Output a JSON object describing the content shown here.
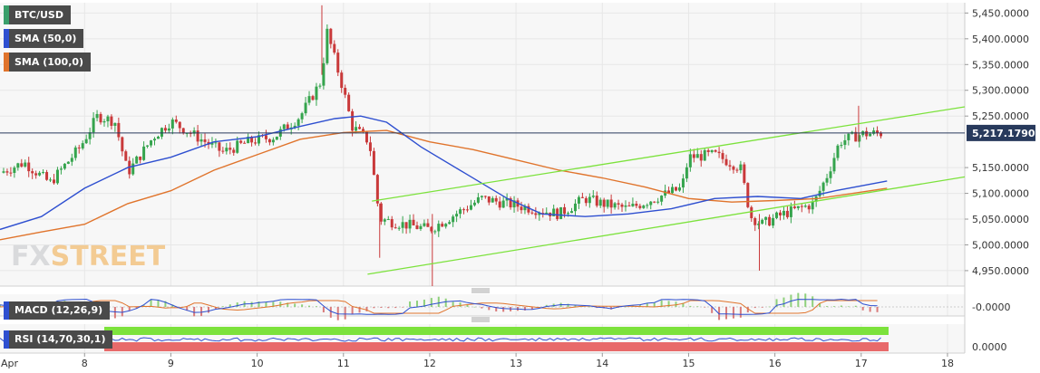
{
  "chart_data": {
    "type": "candlestick",
    "instrument": "BTC/USD",
    "indicators": {
      "sma50": {
        "label": "SMA (50,0)",
        "color": "#2e4fd0"
      },
      "sma100": {
        "label": "SMA (100,0)",
        "color": "#e0742c"
      },
      "macd": {
        "label": "MACD (12,26,9)",
        "zero_label": "-0.0000"
      },
      "rsi": {
        "label": "RSI (14,70,30,1)",
        "zero_label": "0.0000"
      }
    },
    "current_price": {
      "label": "5,217.1790",
      "value": 5217.179
    },
    "y_ticks": [
      {
        "label": "5,450.0000",
        "value": 5450
      },
      {
        "label": "5,400.0000",
        "value": 5400
      },
      {
        "label": "5,350.0000",
        "value": 5350
      },
      {
        "label": "5,300.0000",
        "value": 5300
      },
      {
        "label": "5,250.0000",
        "value": 5250
      },
      {
        "label": "5,150.0000",
        "value": 5150
      },
      {
        "label": "5,100.0000",
        "value": 5100
      },
      {
        "label": "5,050.0000",
        "value": 5050
      },
      {
        "label": "5,000.0000",
        "value": 5000
      },
      {
        "label": "4,950.0000",
        "value": 4950
      }
    ],
    "ylim": [
      4920,
      5470
    ],
    "x_ticks": [
      {
        "label": "Apr",
        "day": 7
      },
      {
        "label": "8",
        "day": 8
      },
      {
        "label": "9",
        "day": 9
      },
      {
        "label": "10",
        "day": 10
      },
      {
        "label": "11",
        "day": 11
      },
      {
        "label": "12",
        "day": 12
      },
      {
        "label": "13",
        "day": 13
      },
      {
        "label": "14",
        "day": 14
      },
      {
        "label": "15",
        "day": 15
      },
      {
        "label": "16",
        "day": 16
      },
      {
        "label": "17",
        "day": 17
      },
      {
        "label": "18",
        "day": 18
      }
    ],
    "xlim": [
      7.02,
      18.2
    ],
    "close_path": [
      [
        7.02,
        5140
      ],
      [
        7.3,
        5160
      ],
      [
        7.6,
        5120
      ],
      [
        7.95,
        5190
      ],
      [
        8.15,
        5250
      ],
      [
        8.35,
        5240
      ],
      [
        8.5,
        5140
      ],
      [
        8.8,
        5210
      ],
      [
        9.0,
        5240
      ],
      [
        9.3,
        5210
      ],
      [
        9.6,
        5180
      ],
      [
        9.9,
        5200
      ],
      [
        10.2,
        5210
      ],
      [
        10.5,
        5250
      ],
      [
        10.75,
        5320
      ],
      [
        10.8,
        5420
      ],
      [
        11.0,
        5300
      ],
      [
        11.1,
        5230
      ],
      [
        11.3,
        5200
      ],
      [
        11.42,
        5050
      ],
      [
        11.7,
        5040
      ],
      [
        12.0,
        5030
      ],
      [
        12.3,
        5060
      ],
      [
        12.6,
        5090
      ],
      [
        12.9,
        5080
      ],
      [
        13.2,
        5070
      ],
      [
        13.5,
        5060
      ],
      [
        13.8,
        5090
      ],
      [
        14.0,
        5080
      ],
      [
        14.3,
        5070
      ],
      [
        14.6,
        5090
      ],
      [
        14.92,
        5110
      ],
      [
        15.0,
        5170
      ],
      [
        15.3,
        5175
      ],
      [
        15.6,
        5150
      ],
      [
        15.72,
        5055
      ],
      [
        15.85,
        5040
      ],
      [
        16.1,
        5060
      ],
      [
        16.45,
        5080
      ],
      [
        16.62,
        5140
      ],
      [
        16.75,
        5200
      ],
      [
        17.0,
        5215
      ],
      [
        17.25,
        5217
      ]
    ],
    "sma50": [
      [
        7.02,
        5030
      ],
      [
        7.5,
        5055
      ],
      [
        8.0,
        5110
      ],
      [
        8.5,
        5150
      ],
      [
        9.0,
        5170
      ],
      [
        9.5,
        5200
      ],
      [
        10.0,
        5210
      ],
      [
        10.5,
        5230
      ],
      [
        10.9,
        5245
      ],
      [
        11.2,
        5250
      ],
      [
        11.5,
        5238
      ],
      [
        11.9,
        5190
      ],
      [
        12.4,
        5140
      ],
      [
        12.9,
        5090
      ],
      [
        13.3,
        5060
      ],
      [
        13.8,
        5055
      ],
      [
        14.3,
        5060
      ],
      [
        14.8,
        5070
      ],
      [
        15.3,
        5090
      ],
      [
        15.8,
        5094
      ],
      [
        16.3,
        5090
      ],
      [
        16.7,
        5105
      ],
      [
        17.3,
        5124
      ]
    ],
    "sma100": [
      [
        7.02,
        5010
      ],
      [
        7.5,
        5025
      ],
      [
        8.0,
        5040
      ],
      [
        8.5,
        5080
      ],
      [
        9.0,
        5105
      ],
      [
        9.5,
        5145
      ],
      [
        10.0,
        5175
      ],
      [
        10.5,
        5205
      ],
      [
        11.0,
        5218
      ],
      [
        11.5,
        5222
      ],
      [
        12.0,
        5200
      ],
      [
        12.5,
        5185
      ],
      [
        13.0,
        5165
      ],
      [
        13.5,
        5145
      ],
      [
        14.0,
        5130
      ],
      [
        14.5,
        5112
      ],
      [
        15.0,
        5090
      ],
      [
        15.5,
        5083
      ],
      [
        16.0,
        5086
      ],
      [
        16.5,
        5090
      ],
      [
        17.3,
        5110
      ]
    ],
    "channel_upper": [
      [
        11.33,
        5085
      ],
      [
        18.2,
        5268
      ]
    ],
    "channel_lower": [
      [
        11.28,
        4943
      ],
      [
        18.2,
        5132
      ]
    ],
    "colors": {
      "bullish": "#35a44d",
      "bearish": "#c9393a",
      "channel": "#7ce23c",
      "macd_line": "#2e4fd0",
      "signal_line": "#e0742c",
      "rsi_line": "#2e4fd0",
      "rsi_overbought_zone": "#7ce23c",
      "rsi_oversold_zone": "#e86a6a"
    }
  }
}
